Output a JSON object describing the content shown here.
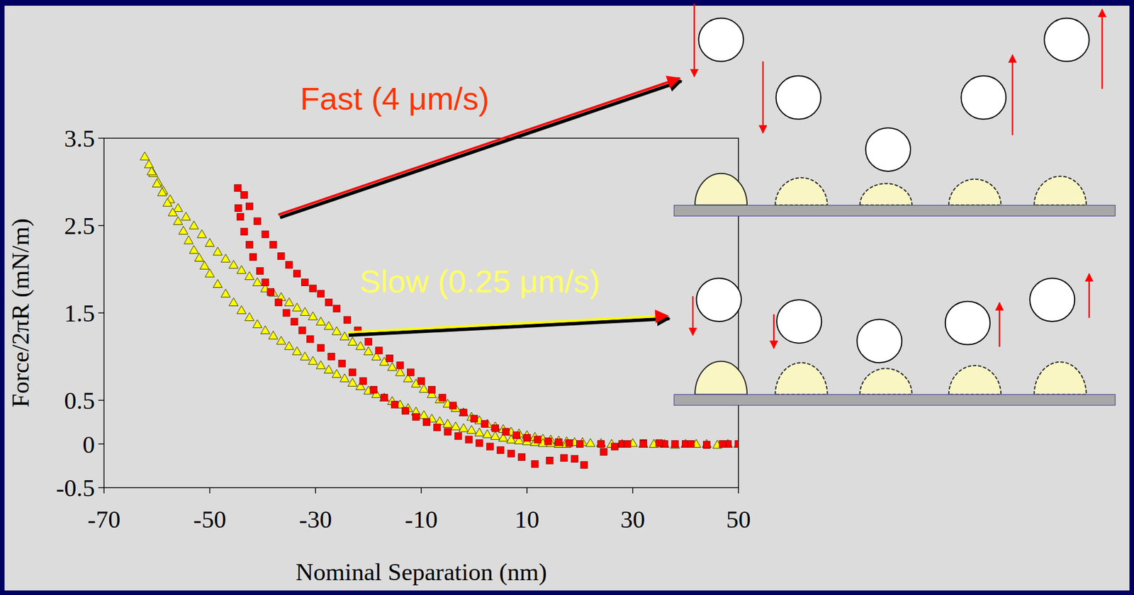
{
  "chart_data": {
    "type": "scatter",
    "x_label": "Nominal Separation (nm)",
    "y_label": "Force/2πR (mN/m)",
    "xlim": [
      -70,
      50
    ],
    "ylim": [
      -0.5,
      3.5
    ],
    "xticks": [
      -70,
      -50,
      -30,
      -10,
      10,
      30,
      50
    ],
    "yticks": [
      -0.5,
      0,
      0.5,
      1.5,
      2.5,
      3.5
    ],
    "series": [
      {
        "name": "Slow (0.25 μm/s)",
        "color": "#ffff00",
        "marker": "triangle",
        "x": [
          -62.3,
          -61.5,
          -60.7,
          -59.8,
          -58.8,
          -57.5,
          -56,
          -54.5,
          -53,
          -51.5,
          -50,
          -48.5,
          -47,
          -45.5,
          -44,
          -42.5,
          -41,
          -39.5,
          -38,
          -36.5,
          -35,
          -33.5,
          -32,
          -30.5,
          -29,
          -27.5,
          -26,
          -24.5,
          -23,
          -21.5,
          -20,
          -18.5,
          -17,
          -15.5,
          -14,
          -12.5,
          -11,
          -9.5,
          -8,
          -6.5,
          -5,
          -3.5,
          -2,
          -0.5,
          1,
          2.5,
          4,
          5.5,
          7,
          8.5,
          10,
          11.5,
          13,
          14.5,
          16,
          17.5,
          19,
          20.5,
          22,
          24,
          26,
          28,
          30,
          32,
          34,
          36,
          38,
          40,
          42,
          44,
          46,
          48,
          50,
          -61,
          -60,
          -59,
          -58,
          -57,
          -56,
          -55,
          -54,
          -53,
          -52,
          -51,
          -50,
          -48.5,
          -47,
          -45.5,
          -44,
          -42.5,
          -41,
          -39.5,
          -38,
          -36.5,
          -35,
          -33.5,
          -32,
          -30.5,
          -29,
          -27.5,
          -26,
          -24.5,
          -23,
          -21.5,
          -20,
          -18.5,
          -17,
          -15.5,
          -14,
          -12.5,
          -11,
          -9.5,
          -8,
          -6.5,
          -5,
          -3.5,
          -2,
          -0.5,
          1,
          2.5,
          4,
          5.5,
          7,
          8.5,
          10,
          11.5,
          13,
          14.5,
          16,
          17.5
        ],
        "values": [
          3.29,
          3.2,
          3.1,
          3.0,
          2.9,
          2.8,
          2.7,
          2.6,
          2.5,
          2.4,
          2.3,
          2.2,
          2.12,
          2.05,
          1.99,
          1.92,
          1.85,
          1.78,
          1.73,
          1.68,
          1.62,
          1.56,
          1.51,
          1.46,
          1.4,
          1.35,
          1.29,
          1.23,
          1.17,
          1.12,
          1.06,
          1.0,
          0.94,
          0.88,
          0.82,
          0.75,
          0.69,
          0.63,
          0.57,
          0.51,
          0.46,
          0.41,
          0.36,
          0.31,
          0.27,
          0.23,
          0.2,
          0.17,
          0.14,
          0.12,
          0.1,
          0.08,
          0.06,
          0.05,
          0.04,
          0.03,
          0.02,
          0.02,
          0.01,
          0.01,
          0,
          0,
          0.01,
          0,
          0,
          0,
          -0.01,
          0,
          0,
          0,
          -0.01,
          0,
          0,
          3.12,
          2.98,
          2.88,
          2.76,
          2.65,
          2.55,
          2.44,
          2.33,
          2.22,
          2.13,
          2.04,
          1.95,
          1.83,
          1.72,
          1.62,
          1.53,
          1.45,
          1.37,
          1.3,
          1.24,
          1.18,
          1.12,
          1.06,
          1.0,
          0.95,
          0.9,
          0.85,
          0.8,
          0.75,
          0.7,
          0.66,
          0.61,
          0.57,
          0.53,
          0.49,
          0.45,
          0.41,
          0.37,
          0.33,
          0.29,
          0.26,
          0.23,
          0.2,
          0.18,
          0.16,
          0.13,
          0.11,
          0.09,
          0.07,
          0.05,
          0.04,
          0.03,
          0.02,
          0.01,
          0.01,
          0,
          0
        ]
      },
      {
        "name": "Fast (4 μm/s)",
        "color": "#ff0000",
        "marker": "square",
        "x": [
          -44.7,
          -43.5,
          -42.5,
          -41,
          -39.5,
          -38,
          -36.5,
          -35,
          -33.5,
          -32,
          -30.5,
          -29,
          -27.5,
          -26,
          -24,
          -22,
          -20,
          -18,
          -16,
          -14,
          -12,
          -10,
          -8,
          -6,
          -4,
          -2,
          0,
          2,
          4,
          6,
          8,
          10,
          12,
          14,
          16,
          18,
          20,
          24,
          28,
          32,
          36,
          40,
          44,
          48,
          -44.6,
          -44.2,
          -43.5,
          -42.5,
          -41.8,
          -40.5,
          -39.5,
          -38.5,
          -37,
          -35.5,
          -34,
          -32.5,
          -31,
          -29,
          -27,
          -25,
          -23,
          -21,
          -19,
          -17,
          -15,
          -13,
          -11,
          -9,
          -7,
          -5,
          -3,
          -1,
          1,
          3,
          5,
          7,
          9,
          11.5,
          14.3,
          17,
          19,
          20.8,
          24.5,
          26.6,
          29,
          32,
          35,
          38,
          41,
          44,
          47,
          50
        ],
        "values": [
          2.93,
          2.85,
          2.72,
          2.55,
          2.4,
          2.28,
          2.15,
          2.05,
          1.95,
          1.85,
          1.78,
          1.72,
          1.62,
          1.55,
          1.42,
          1.3,
          1.17,
          1.07,
          0.98,
          0.9,
          0.82,
          0.72,
          0.62,
          0.53,
          0.44,
          0.36,
          0.29,
          0.23,
          0.18,
          0.14,
          0.1,
          0.07,
          0.05,
          0.03,
          0.02,
          0.01,
          0,
          0,
          0,
          0.01,
          0,
          0,
          -0.01,
          0,
          2.7,
          2.6,
          2.43,
          2.28,
          2.14,
          1.98,
          1.85,
          1.74,
          1.62,
          1.5,
          1.4,
          1.3,
          1.2,
          1.1,
          1.0,
          0.92,
          0.82,
          0.72,
          0.62,
          0.53,
          0.45,
          0.38,
          0.31,
          0.25,
          0.19,
          0.14,
          0.09,
          0.05,
          0.01,
          -0.03,
          -0.07,
          -0.11,
          -0.15,
          -0.23,
          -0.19,
          -0.16,
          -0.17,
          -0.24,
          -0.09,
          -0.03,
          0,
          0,
          0.01,
          0,
          0,
          -0.01,
          0,
          0
        ]
      }
    ]
  }
}
